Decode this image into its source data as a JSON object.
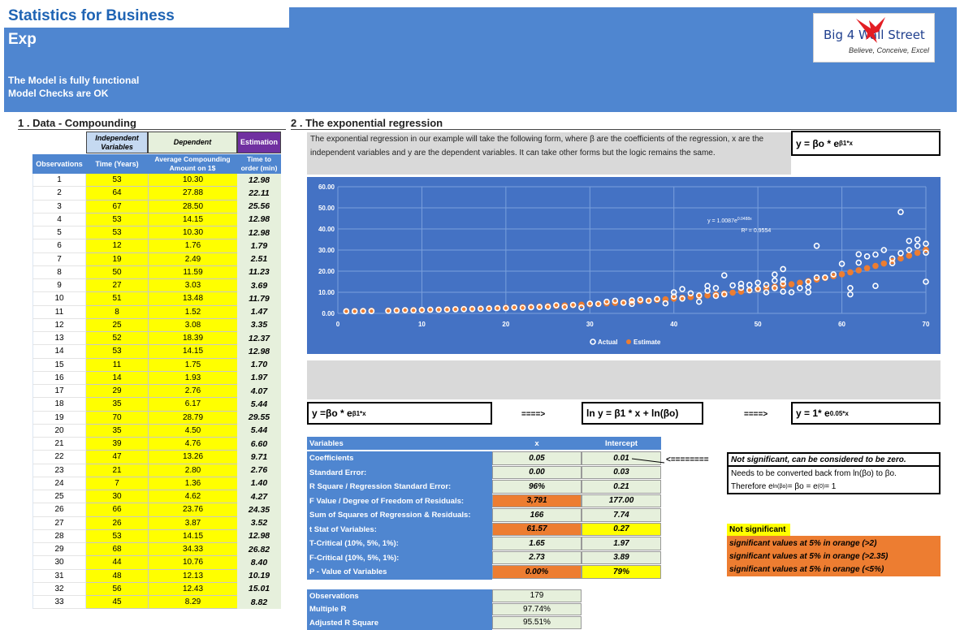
{
  "header": {
    "title": "Statistics for Business",
    "subtitle": "Exp",
    "status_line1": "The Model is fully functional",
    "status_line2": "Model Checks are OK"
  },
  "logo": {
    "name": "Big 4 Wall Street",
    "tagline": "Believe, Conceive, Excel",
    "icon": "eagle-icon"
  },
  "section1": {
    "heading": "1 . Data - Compounding",
    "group_independent": "Independent Variables",
    "group_dependent": "Dependent",
    "group_estimation": "Estimation",
    "col_obs": "Observations",
    "col_time": "Time (Years)",
    "col_amount": "Average Compounding Amount on 1$",
    "col_order": "Time to order (min)",
    "rows": [
      [
        "1",
        "53",
        "10.30",
        "12.98"
      ],
      [
        "2",
        "64",
        "27.88",
        "22.11"
      ],
      [
        "3",
        "67",
        "28.50",
        "25.56"
      ],
      [
        "4",
        "53",
        "14.15",
        "12.98"
      ],
      [
        "5",
        "53",
        "10.30",
        "12.98"
      ],
      [
        "6",
        "12",
        "1.76",
        "1.79"
      ],
      [
        "7",
        "19",
        "2.49",
        "2.51"
      ],
      [
        "8",
        "50",
        "11.59",
        "11.23"
      ],
      [
        "9",
        "27",
        "3.03",
        "3.69"
      ],
      [
        "10",
        "51",
        "13.48",
        "11.79"
      ],
      [
        "11",
        "8",
        "1.52",
        "1.47"
      ],
      [
        "12",
        "25",
        "3.08",
        "3.35"
      ],
      [
        "13",
        "52",
        "18.39",
        "12.37"
      ],
      [
        "14",
        "53",
        "14.15",
        "12.98"
      ],
      [
        "15",
        "11",
        "1.75",
        "1.70"
      ],
      [
        "16",
        "14",
        "1.93",
        "1.97"
      ],
      [
        "17",
        "29",
        "2.76",
        "4.07"
      ],
      [
        "18",
        "35",
        "6.17",
        "5.44"
      ],
      [
        "19",
        "70",
        "28.79",
        "29.55"
      ],
      [
        "20",
        "35",
        "4.50",
        "5.44"
      ],
      [
        "21",
        "39",
        "4.76",
        "6.60"
      ],
      [
        "22",
        "47",
        "13.26",
        "9.71"
      ],
      [
        "23",
        "21",
        "2.80",
        "2.76"
      ],
      [
        "24",
        "7",
        "1.36",
        "1.40"
      ],
      [
        "25",
        "30",
        "4.62",
        "4.27"
      ],
      [
        "26",
        "66",
        "23.76",
        "24.35"
      ],
      [
        "27",
        "26",
        "3.87",
        "3.52"
      ],
      [
        "28",
        "53",
        "14.15",
        "12.98"
      ],
      [
        "29",
        "68",
        "34.33",
        "26.82"
      ],
      [
        "30",
        "44",
        "10.76",
        "8.40"
      ],
      [
        "31",
        "48",
        "12.13",
        "10.19"
      ],
      [
        "32",
        "56",
        "12.43",
        "15.01"
      ],
      [
        "33",
        "45",
        "8.29",
        "8.82"
      ]
    ]
  },
  "section2": {
    "heading": "2 . The exponential regression",
    "description": "The exponential regression in our example will take the following form, where β are the coefficients of the regression, x are the independent variables and y are the dependent variables. It can take other forms but the logic remains the same.",
    "formula_main_base": "y = βo * e",
    "formula_main_exp": "β1*x",
    "formula_a_base": "y =βo * e",
    "formula_a_exp": "β1*x",
    "arrow1": "====>",
    "formula_b": "ln y = β1 * x + ln(βo)",
    "arrow2": "====>",
    "formula_c_base": "y = 1* e",
    "formula_c_exp": "0.05*x"
  },
  "chart_data": {
    "type": "scatter",
    "title": "",
    "xlabel": "",
    "ylabel": "",
    "xlim": [
      0,
      70
    ],
    "ylim": [
      0,
      60
    ],
    "x_ticks": [
      "0",
      "10",
      "20",
      "30",
      "40",
      "50",
      "60",
      "70"
    ],
    "y_ticks": [
      "0.00",
      "10.00",
      "20.00",
      "30.00",
      "40.00",
      "50.00",
      "60.00"
    ],
    "grid": true,
    "legend_position": "bottom",
    "trend_equation": "y = 1.0087e",
    "trend_equation_exp": "0.0488x",
    "r_squared": "R² = 0.9554",
    "series": [
      {
        "name": "Actual",
        "color": "#ffffff",
        "points": [
          [
            1,
            1.0
          ],
          [
            2,
            1.0
          ],
          [
            3,
            1.1
          ],
          [
            4,
            1.1
          ],
          [
            6,
            1.2
          ],
          [
            7,
            1.36
          ],
          [
            8,
            1.52
          ],
          [
            9,
            1.4
          ],
          [
            10,
            1.6
          ],
          [
            11,
            1.75
          ],
          [
            12,
            1.76
          ],
          [
            13,
            1.8
          ],
          [
            14,
            1.93
          ],
          [
            15,
            2.0
          ],
          [
            16,
            2.1
          ],
          [
            17,
            2.2
          ],
          [
            18,
            2.3
          ],
          [
            19,
            2.49
          ],
          [
            20,
            2.5
          ],
          [
            21,
            2.8
          ],
          [
            22,
            2.6
          ],
          [
            23,
            2.9
          ],
          [
            24,
            3.0
          ],
          [
            25,
            3.08
          ],
          [
            26,
            3.87
          ],
          [
            27,
            3.03
          ],
          [
            28,
            4.0
          ],
          [
            29,
            2.76
          ],
          [
            30,
            4.62
          ],
          [
            31,
            4.5
          ],
          [
            32,
            5.5
          ],
          [
            33,
            6.0
          ],
          [
            34,
            5.0
          ],
          [
            35,
            4.5
          ],
          [
            35,
            6.17
          ],
          [
            36,
            6.5
          ],
          [
            37,
            6.0
          ],
          [
            38,
            6.8
          ],
          [
            39,
            4.76
          ],
          [
            40,
            8.0
          ],
          [
            40,
            10.0
          ],
          [
            41,
            11.5
          ],
          [
            41,
            7.0
          ],
          [
            42,
            9.5
          ],
          [
            43,
            8.5
          ],
          [
            43,
            5.5
          ],
          [
            44,
            10.76
          ],
          [
            44,
            13.0
          ],
          [
            45,
            8.29
          ],
          [
            45,
            12.0
          ],
          [
            46,
            18.0
          ],
          [
            46,
            9.0
          ],
          [
            47,
            13.26
          ],
          [
            48,
            12.13
          ],
          [
            48,
            14.0
          ],
          [
            49,
            11.0
          ],
          [
            49,
            13.5
          ],
          [
            50,
            11.59
          ],
          [
            50,
            14.5
          ],
          [
            51,
            13.48
          ],
          [
            51,
            10.0
          ],
          [
            52,
            18.39
          ],
          [
            52,
            12.0
          ],
          [
            52,
            15.5
          ],
          [
            53,
            10.3
          ],
          [
            53,
            14.15
          ],
          [
            53,
            21.0
          ],
          [
            53,
            16.0
          ],
          [
            54,
            10.0
          ],
          [
            55,
            12.0
          ],
          [
            56,
            12.43
          ],
          [
            56,
            15.0
          ],
          [
            56,
            10.0
          ],
          [
            57,
            32.0
          ],
          [
            57,
            17.0
          ],
          [
            58,
            17.0
          ],
          [
            59,
            18.5
          ],
          [
            60,
            23.5
          ],
          [
            61,
            12.0
          ],
          [
            61,
            9.0
          ],
          [
            62,
            28.0
          ],
          [
            62,
            24.0
          ],
          [
            63,
            27.0
          ],
          [
            64,
            27.88
          ],
          [
            64,
            13.0
          ],
          [
            65,
            30.0
          ],
          [
            66,
            23.76
          ],
          [
            66,
            26.0
          ],
          [
            67,
            28.5
          ],
          [
            67,
            48.0
          ],
          [
            68,
            34.33
          ],
          [
            68,
            30.0
          ],
          [
            69,
            32.0
          ],
          [
            69,
            35.0
          ],
          [
            70,
            28.79
          ],
          [
            70,
            33.0
          ],
          [
            70,
            15.0
          ]
        ]
      },
      {
        "name": "Estimate",
        "color": "#ed7d31",
        "points": [
          [
            1,
            1.06
          ],
          [
            2,
            1.11
          ],
          [
            3,
            1.17
          ],
          [
            4,
            1.22
          ],
          [
            6,
            1.35
          ],
          [
            7,
            1.41
          ],
          [
            8,
            1.48
          ],
          [
            9,
            1.56
          ],
          [
            10,
            1.63
          ],
          [
            11,
            1.72
          ],
          [
            12,
            1.8
          ],
          [
            13,
            1.89
          ],
          [
            14,
            1.98
          ],
          [
            15,
            2.08
          ],
          [
            16,
            2.18
          ],
          [
            17,
            2.29
          ],
          [
            18,
            2.41
          ],
          [
            19,
            2.53
          ],
          [
            20,
            2.65
          ],
          [
            21,
            2.78
          ],
          [
            22,
            2.92
          ],
          [
            23,
            3.07
          ],
          [
            24,
            3.22
          ],
          [
            25,
            3.38
          ],
          [
            26,
            3.55
          ],
          [
            27,
            3.72
          ],
          [
            28,
            3.91
          ],
          [
            29,
            4.1
          ],
          [
            30,
            4.31
          ],
          [
            31,
            4.52
          ],
          [
            32,
            4.75
          ],
          [
            33,
            4.98
          ],
          [
            34,
            5.23
          ],
          [
            35,
            5.49
          ],
          [
            36,
            5.77
          ],
          [
            37,
            6.05
          ],
          [
            38,
            6.36
          ],
          [
            39,
            6.67
          ],
          [
            40,
            7.0
          ],
          [
            41,
            7.35
          ],
          [
            42,
            7.72
          ],
          [
            43,
            8.1
          ],
          [
            44,
            8.51
          ],
          [
            45,
            8.93
          ],
          [
            46,
            9.38
          ],
          [
            47,
            9.84
          ],
          [
            48,
            10.33
          ],
          [
            49,
            10.85
          ],
          [
            50,
            11.39
          ],
          [
            51,
            11.96
          ],
          [
            52,
            12.55
          ],
          [
            53,
            13.18
          ],
          [
            54,
            13.83
          ],
          [
            55,
            14.52
          ],
          [
            56,
            15.25
          ],
          [
            57,
            16.01
          ],
          [
            58,
            16.8
          ],
          [
            59,
            17.64
          ],
          [
            60,
            18.52
          ],
          [
            61,
            19.44
          ],
          [
            62,
            20.41
          ],
          [
            63,
            21.42
          ],
          [
            64,
            22.49
          ],
          [
            65,
            23.61
          ],
          [
            66,
            24.79
          ],
          [
            67,
            26.02
          ],
          [
            68,
            27.32
          ],
          [
            69,
            28.68
          ],
          [
            70,
            30.11
          ]
        ]
      }
    ]
  },
  "regression": {
    "col_variables": "Variables",
    "col_x": "x",
    "col_intercept": "Intercept",
    "rows": [
      {
        "label": "Coefficients",
        "x": "0.05",
        "intercept": "0.01",
        "x_color": "#e6f0dc",
        "i_color": "#e6f0dc"
      },
      {
        "label": "Standard Error:",
        "x": "0.00",
        "intercept": "0.03",
        "x_color": "#e6f0dc",
        "i_color": "#e6f0dc"
      },
      {
        "label": "R Square / Regression Standard Error:",
        "x": "96%",
        "intercept": "0.21",
        "x_color": "#e6f0dc",
        "i_color": "#e6f0dc"
      },
      {
        "label": "F Value / Degree of Freedom of Residuals:",
        "x": "3,791",
        "intercept": "177.00",
        "x_color": "#ed7d31",
        "i_color": "#e6f0dc"
      },
      {
        "label": "Sum of Squares of Regression & Residuals:",
        "x": "166",
        "intercept": "7.74",
        "x_color": "#e6f0dc",
        "i_color": "#e6f0dc"
      },
      {
        "label": "t Stat of Variables:",
        "x": "61.57",
        "intercept": "0.27",
        "x_color": "#ed7d31",
        "i_color": "#ffff00"
      },
      {
        "label": "T-Critical (10%, 5%, 1%):",
        "x": "1.65",
        "intercept": "1.97",
        "x_color": "#e6f0dc",
        "i_color": "#e6f0dc"
      },
      {
        "label": "F-Critical (10%, 5%, 1%):",
        "x": "2.73",
        "intercept": "3.89",
        "x_color": "#e6f0dc",
        "i_color": "#e6f0dc"
      },
      {
        "label": "P - Value of Variables",
        "x": "0.00%",
        "intercept": "79%",
        "x_color": "#ed7d31",
        "i_color": "#ffff00"
      }
    ],
    "summary": [
      {
        "label": "Observations",
        "value": "179"
      },
      {
        "label": "Multiple R",
        "value": "97.74%"
      },
      {
        "label": "Adjusted R Square",
        "value": "95.51%"
      }
    ],
    "note_arrow": "<========",
    "note_not_significant": "Not significant, can be considered to be zero.",
    "note_convert": "Needs to be converted back from ln(βo) to βo.",
    "note_therefore_a": "Therefore e",
    "note_therefore_sup1": "ln(βo)",
    "note_therefore_b": " = βo = e",
    "note_therefore_sup2": "(0)",
    "note_therefore_c": " = 1",
    "legend_not_significant": "Not significant",
    "legend_sig_t": "significant values at 5% in orange (>2)",
    "legend_sig_f": "significant values at 5% in orange (>2.35)",
    "legend_sig_p": "significant values at 5% in orange (<5%)"
  }
}
